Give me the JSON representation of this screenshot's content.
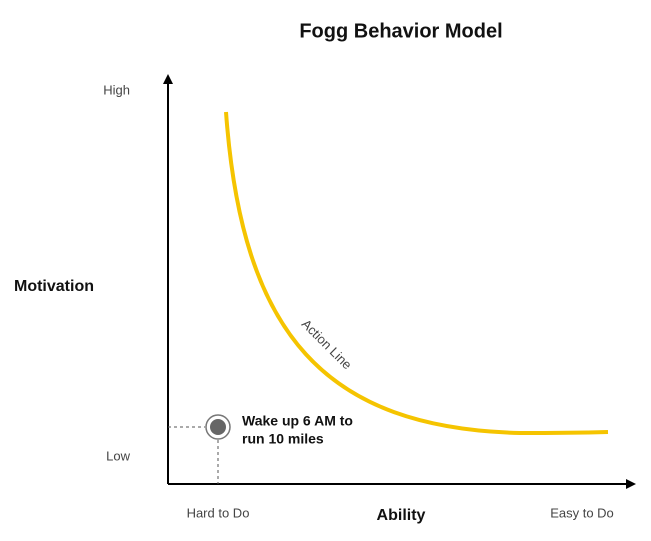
{
  "title": "Fogg Behavior Model",
  "y_axis": {
    "label": "Motivation",
    "high": "High",
    "low": "Low"
  },
  "x_axis": {
    "label": "Ability",
    "left": "Hard to Do",
    "right": "Easy to Do"
  },
  "curve": {
    "label": "Action Line"
  },
  "point": {
    "label_lines": [
      "Wake up 6 AM to",
      "run 10 miles"
    ]
  }
}
